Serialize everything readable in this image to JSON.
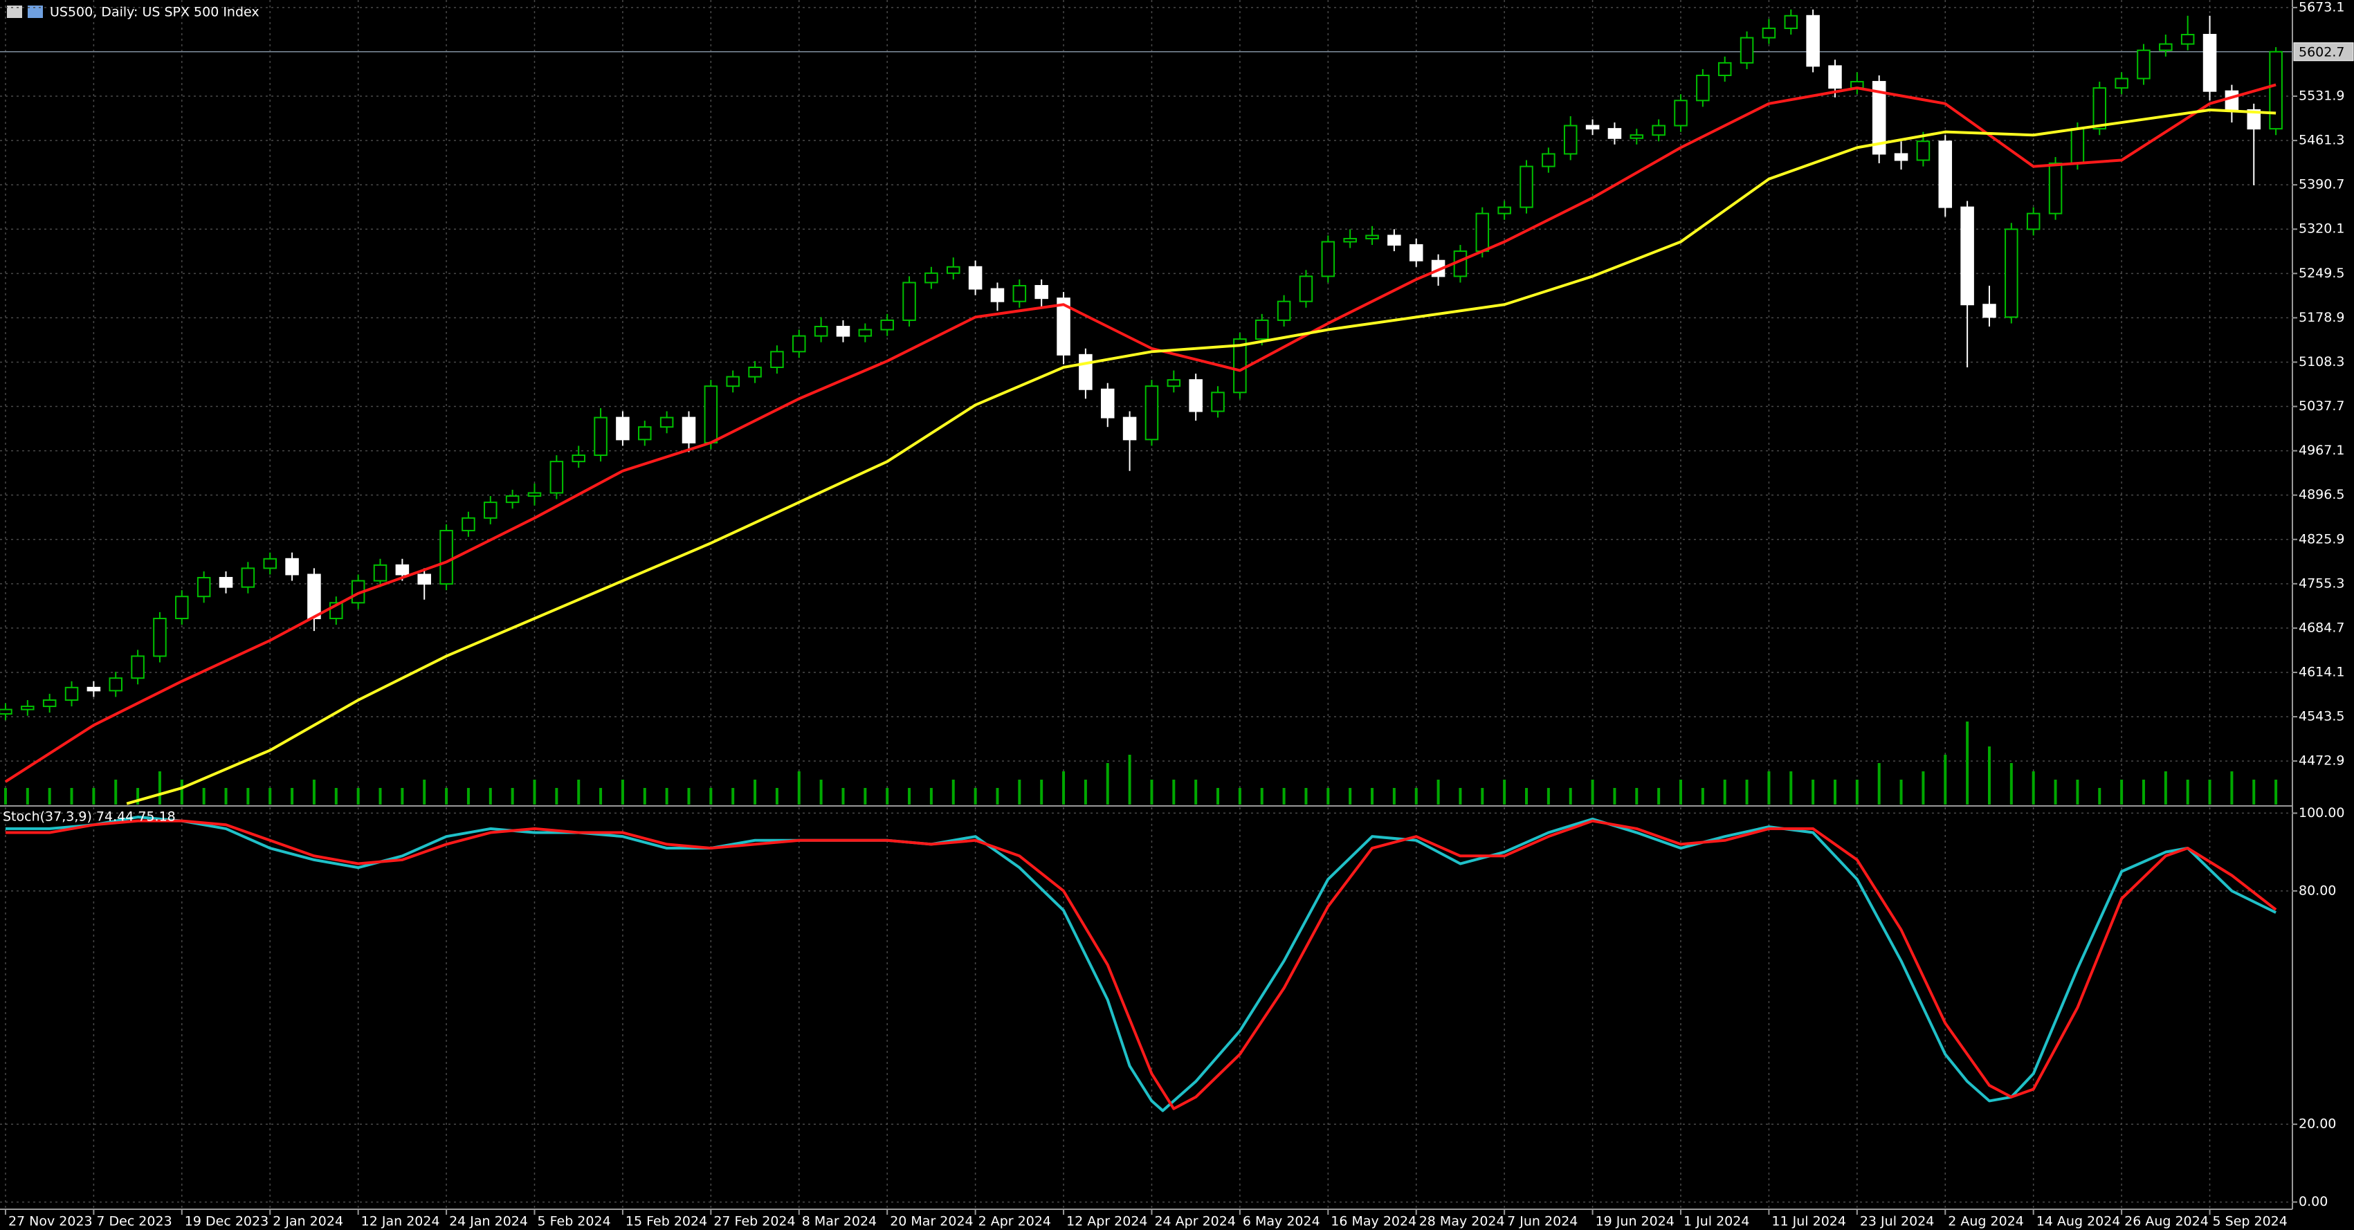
{
  "chart_data": [
    {
      "type": "candlestick",
      "title": "US500, Daily:  US SPX 500 Index",
      "x": [
        0,
        2,
        4,
        6,
        8,
        10,
        12,
        14,
        16,
        18,
        20,
        22,
        24,
        26,
        28,
        30,
        32,
        34,
        36,
        38,
        40,
        42,
        44,
        46,
        48,
        50,
        52,
        54,
        56,
        58,
        60,
        62,
        64,
        66,
        68,
        70,
        72,
        74,
        76,
        78,
        80,
        82,
        84,
        86,
        88,
        90,
        92,
        94,
        96,
        98,
        100,
        102,
        104,
        106,
        108,
        110,
        112,
        114,
        116,
        118,
        120,
        122,
        124,
        126,
        128,
        130,
        132,
        134,
        136,
        138,
        140,
        142,
        144,
        146,
        148,
        150,
        152,
        154,
        156,
        158,
        160,
        162,
        164,
        166,
        168,
        170,
        172,
        174,
        176,
        178,
        180,
        182,
        184,
        186,
        188,
        190,
        192,
        194,
        196,
        198,
        200,
        202,
        204,
        206
      ],
      "open": [
        4548,
        4555,
        4560,
        4570,
        4590,
        4585,
        4605,
        4640,
        4700,
        4735,
        4765,
        4750,
        4780,
        4795,
        4770,
        4700,
        4725,
        4760,
        4785,
        4770,
        4755,
        4840,
        4860,
        4885,
        4895,
        4900,
        4950,
        4960,
        5020,
        4985,
        5005,
        5020,
        4980,
        5070,
        5085,
        5100,
        5125,
        5150,
        5165,
        5150,
        5160,
        5175,
        5235,
        5250,
        5260,
        5225,
        5205,
        5230,
        5210,
        5120,
        5065,
        5020,
        4985,
        5070,
        5080,
        5030,
        5060,
        5145,
        5175,
        5205,
        5245,
        5300,
        5305,
        5310,
        5295,
        5270,
        5245,
        5285,
        5345,
        5355,
        5420,
        5440,
        5485,
        5480,
        5465,
        5470,
        5485,
        5525,
        5565,
        5585,
        5625,
        5640,
        5660,
        5580,
        5545,
        5555,
        5440,
        5430,
        5460,
        5355,
        5200,
        5180,
        5320,
        5345,
        5425,
        5480,
        5545,
        5560,
        5605,
        5615,
        5630,
        5540,
        5510,
        5480
      ],
      "high": [
        4565,
        4570,
        4580,
        4600,
        4600,
        4615,
        4650,
        4710,
        4745,
        4775,
        4775,
        4790,
        4805,
        4805,
        4780,
        4735,
        4770,
        4795,
        4795,
        4780,
        4850,
        4870,
        4895,
        4905,
        4915,
        4960,
        4975,
        5035,
        5030,
        5015,
        5030,
        5030,
        5080,
        5095,
        5110,
        5135,
        5160,
        5180,
        5175,
        5170,
        5185,
        5245,
        5260,
        5275,
        5270,
        5235,
        5240,
        5240,
        5220,
        5130,
        5075,
        5030,
        5080,
        5095,
        5090,
        5070,
        5155,
        5185,
        5215,
        5255,
        5310,
        5320,
        5325,
        5320,
        5305,
        5280,
        5295,
        5355,
        5365,
        5430,
        5450,
        5500,
        5495,
        5490,
        5480,
        5495,
        5535,
        5575,
        5595,
        5635,
        5655,
        5670,
        5670,
        5590,
        5570,
        5565,
        5460,
        5475,
        5470,
        5365,
        5230,
        5330,
        5355,
        5435,
        5490,
        5555,
        5570,
        5615,
        5630,
        5660,
        5660,
        5550,
        5520,
        5610
      ],
      "low": [
        4538,
        4545,
        4550,
        4560,
        4575,
        4575,
        4595,
        4630,
        4690,
        4725,
        4740,
        4740,
        4770,
        4760,
        4680,
        4690,
        4715,
        4750,
        4760,
        4730,
        4745,
        4830,
        4850,
        4875,
        4880,
        4890,
        4940,
        4950,
        4975,
        4975,
        4995,
        4965,
        4970,
        5060,
        5075,
        5090,
        5115,
        5140,
        5140,
        5140,
        5150,
        5165,
        5225,
        5240,
        5215,
        5190,
        5195,
        5195,
        5105,
        5050,
        5005,
        4935,
        4975,
        5060,
        5015,
        5020,
        5050,
        5135,
        5165,
        5195,
        5235,
        5290,
        5295,
        5285,
        5260,
        5230,
        5235,
        5275,
        5335,
        5345,
        5410,
        5430,
        5470,
        5455,
        5455,
        5460,
        5475,
        5515,
        5555,
        5575,
        5615,
        5630,
        5570,
        5530,
        5535,
        5425,
        5415,
        5420,
        5340,
        5100,
        5165,
        5170,
        5310,
        5335,
        5415,
        5470,
        5535,
        5550,
        5595,
        5605,
        5525,
        5490,
        5390,
        5470
      ],
      "close": [
        4555,
        4560,
        4570,
        4590,
        4585,
        4605,
        4640,
        4700,
        4735,
        4765,
        4750,
        4780,
        4795,
        4770,
        4700,
        4725,
        4760,
        4785,
        4770,
        4755,
        4840,
        4860,
        4885,
        4895,
        4900,
        4950,
        4960,
        5020,
        4985,
        5005,
        5020,
        4980,
        5070,
        5085,
        5100,
        5125,
        5150,
        5165,
        5150,
        5160,
        5175,
        5235,
        5250,
        5260,
        5225,
        5205,
        5230,
        5210,
        5120,
        5065,
        5020,
        4985,
        5070,
        5080,
        5030,
        5060,
        5145,
        5175,
        5205,
        5245,
        5300,
        5305,
        5310,
        5295,
        5270,
        5245,
        5285,
        5345,
        5355,
        5420,
        5440,
        5485,
        5480,
        5465,
        5470,
        5485,
        5525,
        5565,
        5585,
        5625,
        5640,
        5660,
        5580,
        5545,
        5555,
        5440,
        5430,
        5460,
        5355,
        5200,
        5180,
        5320,
        5345,
        5425,
        5480,
        5545,
        5560,
        5605,
        5615,
        5630,
        5540,
        5510,
        5480,
        5602.7
      ],
      "volume": [
        2,
        2,
        2,
        2,
        2,
        3,
        2,
        4,
        3,
        2,
        2,
        2,
        2,
        2,
        3,
        2,
        2,
        2,
        2,
        3,
        2,
        2,
        2,
        2,
        3,
        2,
        3,
        2,
        3,
        2,
        2,
        2,
        2,
        2,
        3,
        2,
        4,
        3,
        2,
        2,
        2,
        2,
        2,
        3,
        2,
        2,
        3,
        3,
        4,
        3,
        5,
        6,
        3,
        3,
        3,
        2,
        2,
        2,
        2,
        2,
        2,
        2,
        2,
        2,
        2,
        3,
        2,
        2,
        3,
        2,
        2,
        2,
        3,
        2,
        2,
        2,
        3,
        2,
        3,
        3,
        4,
        4,
        3,
        3,
        3,
        5,
        3,
        4,
        6,
        10,
        7,
        5,
        4,
        3,
        3,
        2,
        3,
        3,
        4,
        3,
        3,
        4,
        3,
        3
      ],
      "bull_color": "#00c000",
      "bear_color": "#ffffff",
      "volume_color": "#00a800",
      "series": [
        {
          "color": "#ff1a1a",
          "x": [
            0,
            8,
            16,
            24,
            32,
            40,
            48,
            56,
            64,
            72,
            80,
            88,
            96,
            104,
            112,
            120,
            128,
            136,
            144,
            152,
            160,
            168,
            176,
            184,
            192,
            200,
            206
          ],
          "values": [
            4440,
            4530,
            4600,
            4665,
            4740,
            4790,
            4860,
            4935,
            4980,
            5050,
            5110,
            5180,
            5200,
            5130,
            5095,
            5170,
            5240,
            5300,
            5370,
            5450,
            5520,
            5545,
            5520,
            5420,
            5430,
            5520,
            5550
          ]
        },
        {
          "color": "#ffff20",
          "x": [
            11,
            16,
            24,
            32,
            40,
            48,
            56,
            64,
            72,
            80,
            88,
            96,
            104,
            112,
            120,
            128,
            136,
            144,
            152,
            160,
            168,
            176,
            184,
            192,
            200,
            206
          ],
          "values": [
            4405,
            4430,
            4490,
            4570,
            4640,
            4700,
            4760,
            4820,
            4885,
            4950,
            5040,
            5100,
            5125,
            5135,
            5160,
            5180,
            5200,
            5245,
            5300,
            5400,
            5450,
            5475,
            5470,
            5490,
            5510,
            5505
          ]
        }
      ],
      "current_price": 5602.7,
      "xlim": [
        -0.5,
        207.5
      ],
      "ylim": [
        4403.6,
        5685.1
      ],
      "yticks": [
        5673.1,
        5531.9,
        5461.3,
        5390.7,
        5320.1,
        5249.5,
        5178.9,
        5108.3,
        5037.7,
        4967.1,
        4896.5,
        4825.9,
        4755.3,
        4684.7,
        4614.1,
        4543.5,
        4472.9
      ],
      "xticks": [
        {
          "value": 0,
          "label": "27 Nov 2023"
        },
        {
          "value": 8,
          "label": "7 Dec 2023"
        },
        {
          "value": 16,
          "label": "19 Dec 2023"
        },
        {
          "value": 24,
          "label": "2 Jan 2024"
        },
        {
          "value": 32,
          "label": "12 Jan 2024"
        },
        {
          "value": 40,
          "label": "24 Jan 2024"
        },
        {
          "value": 48,
          "label": "5 Feb 2024"
        },
        {
          "value": 56,
          "label": "15 Feb 2024"
        },
        {
          "value": 64,
          "label": "27 Feb 2024"
        },
        {
          "value": 72,
          "label": "8 Mar 2024"
        },
        {
          "value": 80,
          "label": "20 Mar 2024"
        },
        {
          "value": 88,
          "label": "2 Apr 2024"
        },
        {
          "value": 96,
          "label": "12 Apr 2024"
        },
        {
          "value": 104,
          "label": "24 Apr 2024"
        },
        {
          "value": 112,
          "label": "6 May 2024"
        },
        {
          "value": 120,
          "label": "16 May 2024"
        },
        {
          "value": 128,
          "label": "28 May 2024"
        },
        {
          "value": 136,
          "label": "7 Jun 2024"
        },
        {
          "value": 144,
          "label": "19 Jun 2024"
        },
        {
          "value": 152,
          "label": "1 Jul 2024"
        },
        {
          "value": 160,
          "label": "11 Jul 2024"
        },
        {
          "value": 168,
          "label": "23 Jul 2024"
        },
        {
          "value": 176,
          "label": "2 Aug 2024"
        },
        {
          "value": 184,
          "label": "14 Aug 2024"
        },
        {
          "value": 192,
          "label": "26 Aug 2024"
        },
        {
          "value": 200,
          "label": "5 Sep 2024"
        }
      ],
      "grid": true
    },
    {
      "type": "line",
      "title": "Stoch(37,3,9) 74.44 75.18",
      "series": [
        {
          "color": "#20c0c8",
          "x": [
            0,
            4,
            8,
            12,
            16,
            20,
            24,
            28,
            32,
            36,
            40,
            44,
            48,
            52,
            56,
            60,
            64,
            68,
            72,
            76,
            80,
            84,
            88,
            92,
            96,
            100,
            102,
            104,
            105,
            108,
            112,
            116,
            120,
            124,
            128,
            132,
            136,
            140,
            144,
            148,
            152,
            156,
            160,
            164,
            168,
            172,
            176,
            178,
            180,
            182,
            184,
            188,
            192,
            196,
            198,
            202,
            206
          ],
          "values": [
            96,
            96,
            97,
            99,
            98,
            96,
            91,
            88,
            86,
            89,
            94,
            96,
            95,
            95,
            94,
            91,
            91,
            93,
            93,
            93,
            93,
            92,
            94,
            86,
            75,
            52,
            35,
            26,
            23.5,
            31,
            44,
            62,
            83,
            94,
            93,
            87,
            90,
            95,
            98.5,
            95,
            91,
            94,
            96.5,
            95,
            83,
            62,
            38,
            31,
            26,
            27,
            33,
            60,
            85,
            90,
            91,
            80,
            74.44
          ]
        },
        {
          "color": "#ff1a1a",
          "x": [
            0,
            4,
            8,
            12,
            16,
            20,
            24,
            28,
            32,
            36,
            40,
            44,
            48,
            52,
            56,
            60,
            64,
            68,
            72,
            76,
            80,
            84,
            88,
            92,
            96,
            100,
            104,
            106,
            108,
            112,
            116,
            120,
            124,
            128,
            132,
            136,
            140,
            144,
            148,
            152,
            156,
            160,
            164,
            168,
            172,
            176,
            180,
            182,
            184,
            188,
            192,
            196,
            198,
            202,
            206
          ],
          "values": [
            95,
            95,
            97,
            98,
            98,
            97,
            93,
            89,
            87,
            88,
            92,
            95,
            96,
            95,
            95,
            92,
            91,
            92,
            93,
            93,
            93,
            92,
            93,
            89,
            80,
            61,
            33,
            24,
            27,
            38,
            55,
            76,
            91,
            94,
            89,
            89,
            94,
            98,
            96,
            92,
            93,
            96,
            96,
            88,
            70,
            46,
            30,
            27,
            29,
            50,
            78,
            89,
            91,
            84,
            75.18
          ]
        }
      ],
      "ylim": [
        -1.5,
        101.5
      ],
      "yticks": [
        {
          "value": 100,
          "label": "100.00"
        },
        {
          "value": 80,
          "label": "80.00"
        },
        {
          "value": 20,
          "label": "20.00"
        },
        {
          "value": 0,
          "label": "0.00"
        }
      ],
      "grid": true
    }
  ]
}
